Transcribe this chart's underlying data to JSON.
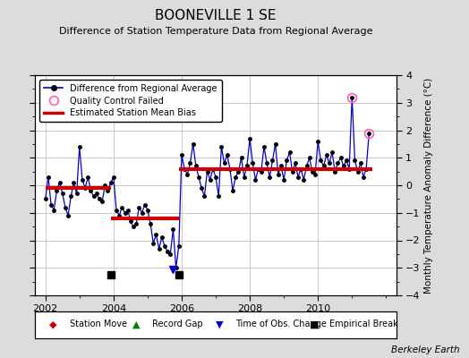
{
  "title": "BOONEVILLE 1 SE",
  "subtitle": "Difference of Station Temperature Data from Regional Average",
  "ylabel": "Monthly Temperature Anomaly Difference (°C)",
  "watermark": "Berkeley Earth",
  "xlim": [
    2001.7,
    2012.3
  ],
  "ylim": [
    -4,
    4
  ],
  "yticks": [
    -4,
    -3,
    -2,
    -1,
    0,
    1,
    2,
    3,
    4
  ],
  "xticks": [
    2002,
    2004,
    2006,
    2008,
    2010
  ],
  "background_color": "#dcdcdc",
  "plot_bg_color": "#ffffff",
  "segment_bias": [
    {
      "x_start": 2002.0,
      "x_end": 2003.92,
      "bias": -0.1
    },
    {
      "x_start": 2003.92,
      "x_end": 2005.92,
      "bias": -1.2
    },
    {
      "x_start": 2005.92,
      "x_end": 2011.6,
      "bias": 0.6
    }
  ],
  "empirical_breaks": [
    2003.92,
    2005.92
  ],
  "empirical_break_y": -3.25,
  "obs_change": [
    2005.75
  ],
  "obs_change_y": -3.05,
  "qc_failed": [
    2011.0,
    2011.5
  ],
  "qc_failed_values": [
    3.2,
    1.9
  ],
  "time_series": {
    "dates": [
      2002.0,
      2002.083,
      2002.167,
      2002.25,
      2002.333,
      2002.417,
      2002.5,
      2002.583,
      2002.667,
      2002.75,
      2002.833,
      2002.917,
      2003.0,
      2003.083,
      2003.167,
      2003.25,
      2003.333,
      2003.417,
      2003.5,
      2003.583,
      2003.667,
      2003.75,
      2003.833,
      2003.917,
      2004.0,
      2004.083,
      2004.167,
      2004.25,
      2004.333,
      2004.417,
      2004.5,
      2004.583,
      2004.667,
      2004.75,
      2004.833,
      2004.917,
      2005.0,
      2005.083,
      2005.167,
      2005.25,
      2005.333,
      2005.417,
      2005.5,
      2005.583,
      2005.667,
      2005.75,
      2005.833,
      2005.917,
      2006.0,
      2006.083,
      2006.167,
      2006.25,
      2006.333,
      2006.417,
      2006.5,
      2006.583,
      2006.667,
      2006.75,
      2006.833,
      2006.917,
      2007.0,
      2007.083,
      2007.167,
      2007.25,
      2007.333,
      2007.417,
      2007.5,
      2007.583,
      2007.667,
      2007.75,
      2007.833,
      2007.917,
      2008.0,
      2008.083,
      2008.167,
      2008.25,
      2008.333,
      2008.417,
      2008.5,
      2008.583,
      2008.667,
      2008.75,
      2008.833,
      2008.917,
      2009.0,
      2009.083,
      2009.167,
      2009.25,
      2009.333,
      2009.417,
      2009.5,
      2009.583,
      2009.667,
      2009.75,
      2009.833,
      2009.917,
      2010.0,
      2010.083,
      2010.167,
      2010.25,
      2010.333,
      2010.417,
      2010.5,
      2010.583,
      2010.667,
      2010.75,
      2010.833,
      2010.917,
      2011.0,
      2011.083,
      2011.167,
      2011.25,
      2011.333,
      2011.417,
      2011.5
    ],
    "values": [
      -0.5,
      0.3,
      -0.7,
      -0.9,
      -0.2,
      0.1,
      -0.3,
      -0.8,
      -1.1,
      -0.4,
      0.1,
      -0.3,
      1.4,
      0.2,
      -0.1,
      0.3,
      -0.2,
      -0.4,
      -0.3,
      -0.5,
      -0.6,
      0.0,
      -0.2,
      0.1,
      0.3,
      -0.9,
      -1.1,
      -0.8,
      -1.0,
      -0.9,
      -1.3,
      -1.5,
      -1.4,
      -0.8,
      -1.0,
      -0.7,
      -0.9,
      -1.4,
      -2.1,
      -1.8,
      -2.3,
      -1.9,
      -2.2,
      -2.4,
      -2.5,
      -1.6,
      -3.0,
      -2.2,
      1.1,
      0.6,
      0.4,
      0.8,
      1.5,
      0.7,
      0.3,
      -0.1,
      -0.4,
      0.5,
      0.2,
      0.6,
      0.3,
      -0.4,
      1.4,
      0.8,
      1.1,
      0.6,
      -0.2,
      0.3,
      0.5,
      1.0,
      0.3,
      0.7,
      1.7,
      0.8,
      0.2,
      0.6,
      0.5,
      1.4,
      0.8,
      0.3,
      0.9,
      1.5,
      0.4,
      0.7,
      0.2,
      0.9,
      1.2,
      0.5,
      0.8,
      0.3,
      0.6,
      0.2,
      0.7,
      1.0,
      0.5,
      0.4,
      1.6,
      0.9,
      0.7,
      1.1,
      0.8,
      1.2,
      0.5,
      0.8,
      1.0,
      0.7,
      0.9,
      0.6,
      3.2,
      0.9,
      0.5,
      0.8,
      0.3,
      0.6,
      1.9
    ]
  },
  "line_color": "#0000cc",
  "marker_color": "#000000",
  "bias_color": "#cc0000",
  "qc_color": "#ff69b4",
  "grid_color": "#c8c8c8",
  "title_fontsize": 11,
  "subtitle_fontsize": 8,
  "tick_fontsize": 8,
  "ylabel_fontsize": 7.5
}
